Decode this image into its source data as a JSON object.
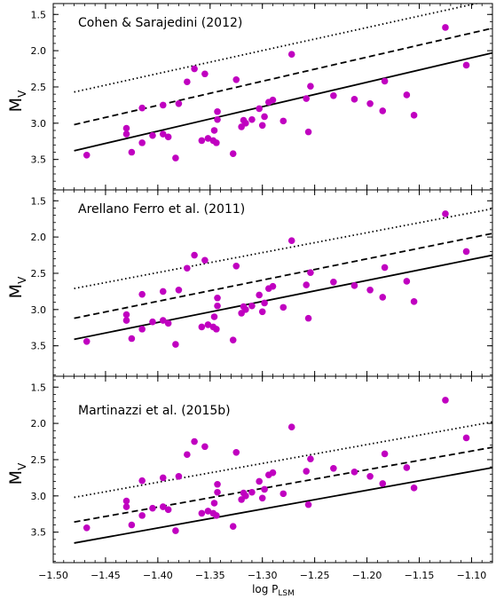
{
  "chart_data": {
    "type": "scatter",
    "xlabel_main": "log P",
    "xlabel_sub": "LSM",
    "ylabel_main": "M",
    "ylabel_sub": "V",
    "xlim": [
      -1.5,
      -1.08
    ],
    "ylim": [
      3.92,
      1.35
    ],
    "y_inverted": true,
    "x_ticks": [
      -1.5,
      -1.45,
      -1.4,
      -1.35,
      -1.3,
      -1.25,
      -1.2,
      -1.15,
      -1.1
    ],
    "x_tick_labels": [
      "−1.50",
      "−1.45",
      "−1.40",
      "−1.35",
      "−1.30",
      "−1.25",
      "−1.20",
      "−1.15",
      "−1.10"
    ],
    "y_ticks": [
      1.5,
      2.0,
      2.5,
      3.0,
      3.5
    ],
    "y_tick_labels": [
      "1.5",
      "2.0",
      "2.5",
      "3.0",
      "3.5"
    ],
    "point_color": "#c000c0",
    "points": [
      [
        -1.468,
        3.44
      ],
      [
        -1.43,
        3.07
      ],
      [
        -1.43,
        3.15
      ],
      [
        -1.425,
        3.4
      ],
      [
        -1.415,
        2.79
      ],
      [
        -1.415,
        3.27
      ],
      [
        -1.405,
        3.17
      ],
      [
        -1.395,
        2.75
      ],
      [
        -1.395,
        3.15
      ],
      [
        -1.39,
        3.19
      ],
      [
        -1.383,
        3.48
      ],
      [
        -1.38,
        2.73
      ],
      [
        -1.372,
        2.43
      ],
      [
        -1.365,
        2.25
      ],
      [
        -1.358,
        3.24
      ],
      [
        -1.355,
        2.32
      ],
      [
        -1.352,
        3.21
      ],
      [
        -1.347,
        3.24
      ],
      [
        -1.346,
        3.1
      ],
      [
        -1.344,
        3.27
      ],
      [
        -1.343,
        2.95
      ],
      [
        -1.343,
        2.84
      ],
      [
        -1.328,
        3.42
      ],
      [
        -1.325,
        2.4
      ],
      [
        -1.32,
        3.05
      ],
      [
        -1.318,
        2.96
      ],
      [
        -1.316,
        3.0
      ],
      [
        -1.31,
        2.95
      ],
      [
        -1.303,
        2.8
      ],
      [
        -1.3,
        3.03
      ],
      [
        -1.298,
        2.91
      ],
      [
        -1.294,
        2.71
      ],
      [
        -1.29,
        2.68
      ],
      [
        -1.28,
        2.97
      ],
      [
        -1.272,
        2.05
      ],
      [
        -1.258,
        2.66
      ],
      [
        -1.256,
        3.12
      ],
      [
        -1.254,
        2.49
      ],
      [
        -1.232,
        2.62
      ],
      [
        -1.212,
        2.67
      ],
      [
        -1.197,
        2.73
      ],
      [
        -1.185,
        2.83
      ],
      [
        -1.183,
        2.42
      ],
      [
        -1.162,
        2.61
      ],
      [
        -1.155,
        2.89
      ],
      [
        -1.125,
        1.68
      ],
      [
        -1.105,
        2.2
      ]
    ],
    "panels": [
      {
        "title": "Cohen & Sarajedini (2012)",
        "lines": [
          {
            "style": "dotted",
            "x": [
              -1.48,
              -1.08
            ],
            "y": [
              2.57,
              1.3
            ]
          },
          {
            "style": "dashed",
            "x": [
              -1.48,
              -1.08
            ],
            "y": [
              3.02,
              1.69
            ]
          },
          {
            "style": "solid",
            "x": [
              -1.48,
              -1.08
            ],
            "y": [
              3.38,
              2.03
            ]
          }
        ]
      },
      {
        "title": "Arellano Ferro et al. (2011)",
        "lines": [
          {
            "style": "dotted",
            "x": [
              -1.48,
              -1.08
            ],
            "y": [
              2.71,
              1.61
            ]
          },
          {
            "style": "dashed",
            "x": [
              -1.48,
              -1.08
            ],
            "y": [
              3.12,
              1.95
            ]
          },
          {
            "style": "solid",
            "x": [
              -1.48,
              -1.08
            ],
            "y": [
              3.41,
              2.25
            ]
          }
        ]
      },
      {
        "title": "Martinazzi et al. (2015b)",
        "lines": [
          {
            "style": "dotted",
            "x": [
              -1.48,
              -1.08
            ],
            "y": [
              3.02,
              1.98
            ]
          },
          {
            "style": "dashed",
            "x": [
              -1.48,
              -1.08
            ],
            "y": [
              3.36,
              2.33
            ]
          },
          {
            "style": "solid",
            "x": [
              -1.48,
              -1.08
            ],
            "y": [
              3.65,
              2.61
            ]
          }
        ]
      }
    ]
  }
}
